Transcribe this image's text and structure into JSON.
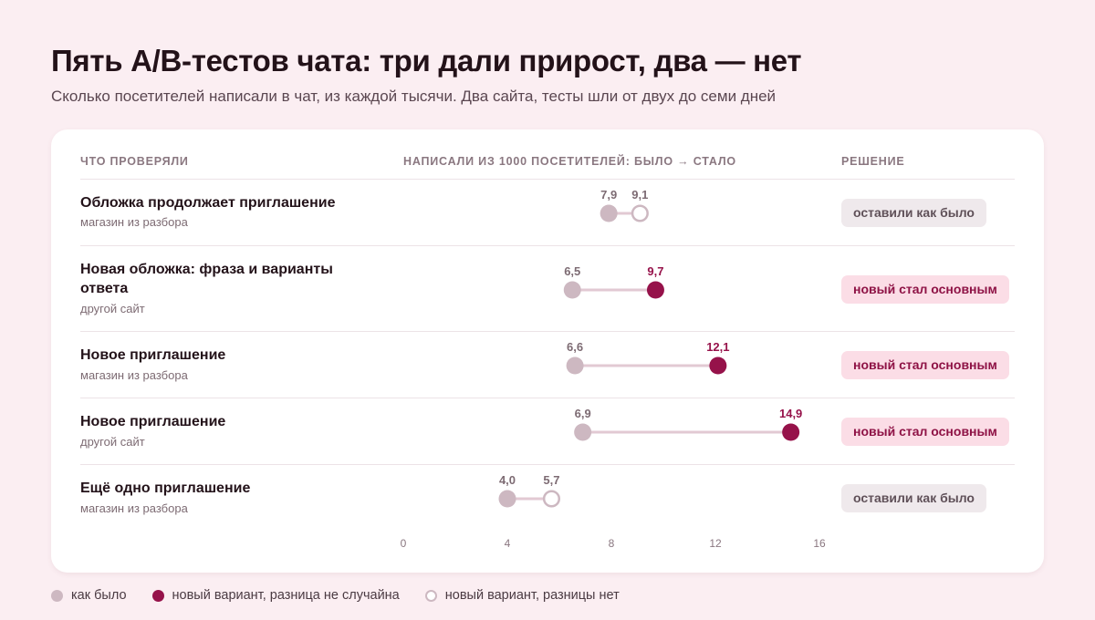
{
  "title": "Пять А/В-тестов чата: три дали прирост, два — нет",
  "subtitle": "Сколько посетителей написали в чат, из каждой тысячи. Два сайта, тесты шли от двух до семи дней",
  "headers": {
    "what": "ЧТО ПРОВЕРЯЛИ",
    "axis": "НАПИСАЛИ ИЗ 1000 ПОСЕТИТЕЛЕЙ: БЫЛО → СТАЛО",
    "decision": "РЕШЕНИЕ"
  },
  "rows": [
    {
      "name": "Обложка продолжает приглашение",
      "site": "магазин из разбора",
      "before_label": "7,9",
      "after_label": "9,1",
      "decision": "оставили как было"
    },
    {
      "name": "Новая обложка: фраза и варианты ответа",
      "site": "другой сайт",
      "before_label": "6,5",
      "after_label": "9,7",
      "decision": "новый стал основным"
    },
    {
      "name": "Новое приглашение",
      "site": "магазин из разбора",
      "before_label": "6,6",
      "after_label": "12,1",
      "decision": "новый стал основным"
    },
    {
      "name": "Новое приглашение",
      "site": "другой сайт",
      "before_label": "6,9",
      "after_label": "14,9",
      "decision": "новый стал основным"
    },
    {
      "name": "Ещё одно приглашение",
      "site": "магазин из разбора",
      "before_label": "4,0",
      "after_label": "5,7",
      "decision": "оставили как было"
    }
  ],
  "legend": {
    "old": "как было",
    "win": "новый вариант, разница не случайна",
    "ns": "новый вариант, разницы нет"
  },
  "colors": {
    "old": "#cdb8c1",
    "win": "#96124a",
    "connector": "#e2c9d3",
    "ns_label": "#7d6b73"
  },
  "chart_data": {
    "type": "dumbbell",
    "xlabel": "НАПИСАЛИ ИЗ 1000 ПОСЕТИТЕЛЕЙ: БЫЛО → СТАЛО",
    "xlim": [
      0,
      16
    ],
    "xticks": [
      0,
      4,
      8,
      12,
      16
    ],
    "tick_labels": [
      "0",
      "4",
      "8",
      "12",
      "16"
    ],
    "grid": false,
    "legend_position": "bottom-left",
    "series": [
      {
        "name": "как было",
        "values": [
          7.9,
          6.5,
          6.6,
          6.9,
          4.0
        ]
      },
      {
        "name": "новый вариант",
        "values": [
          9.1,
          9.7,
          12.1,
          14.9,
          5.7
        ]
      }
    ],
    "significant": [
      false,
      true,
      true,
      true,
      false
    ]
  }
}
